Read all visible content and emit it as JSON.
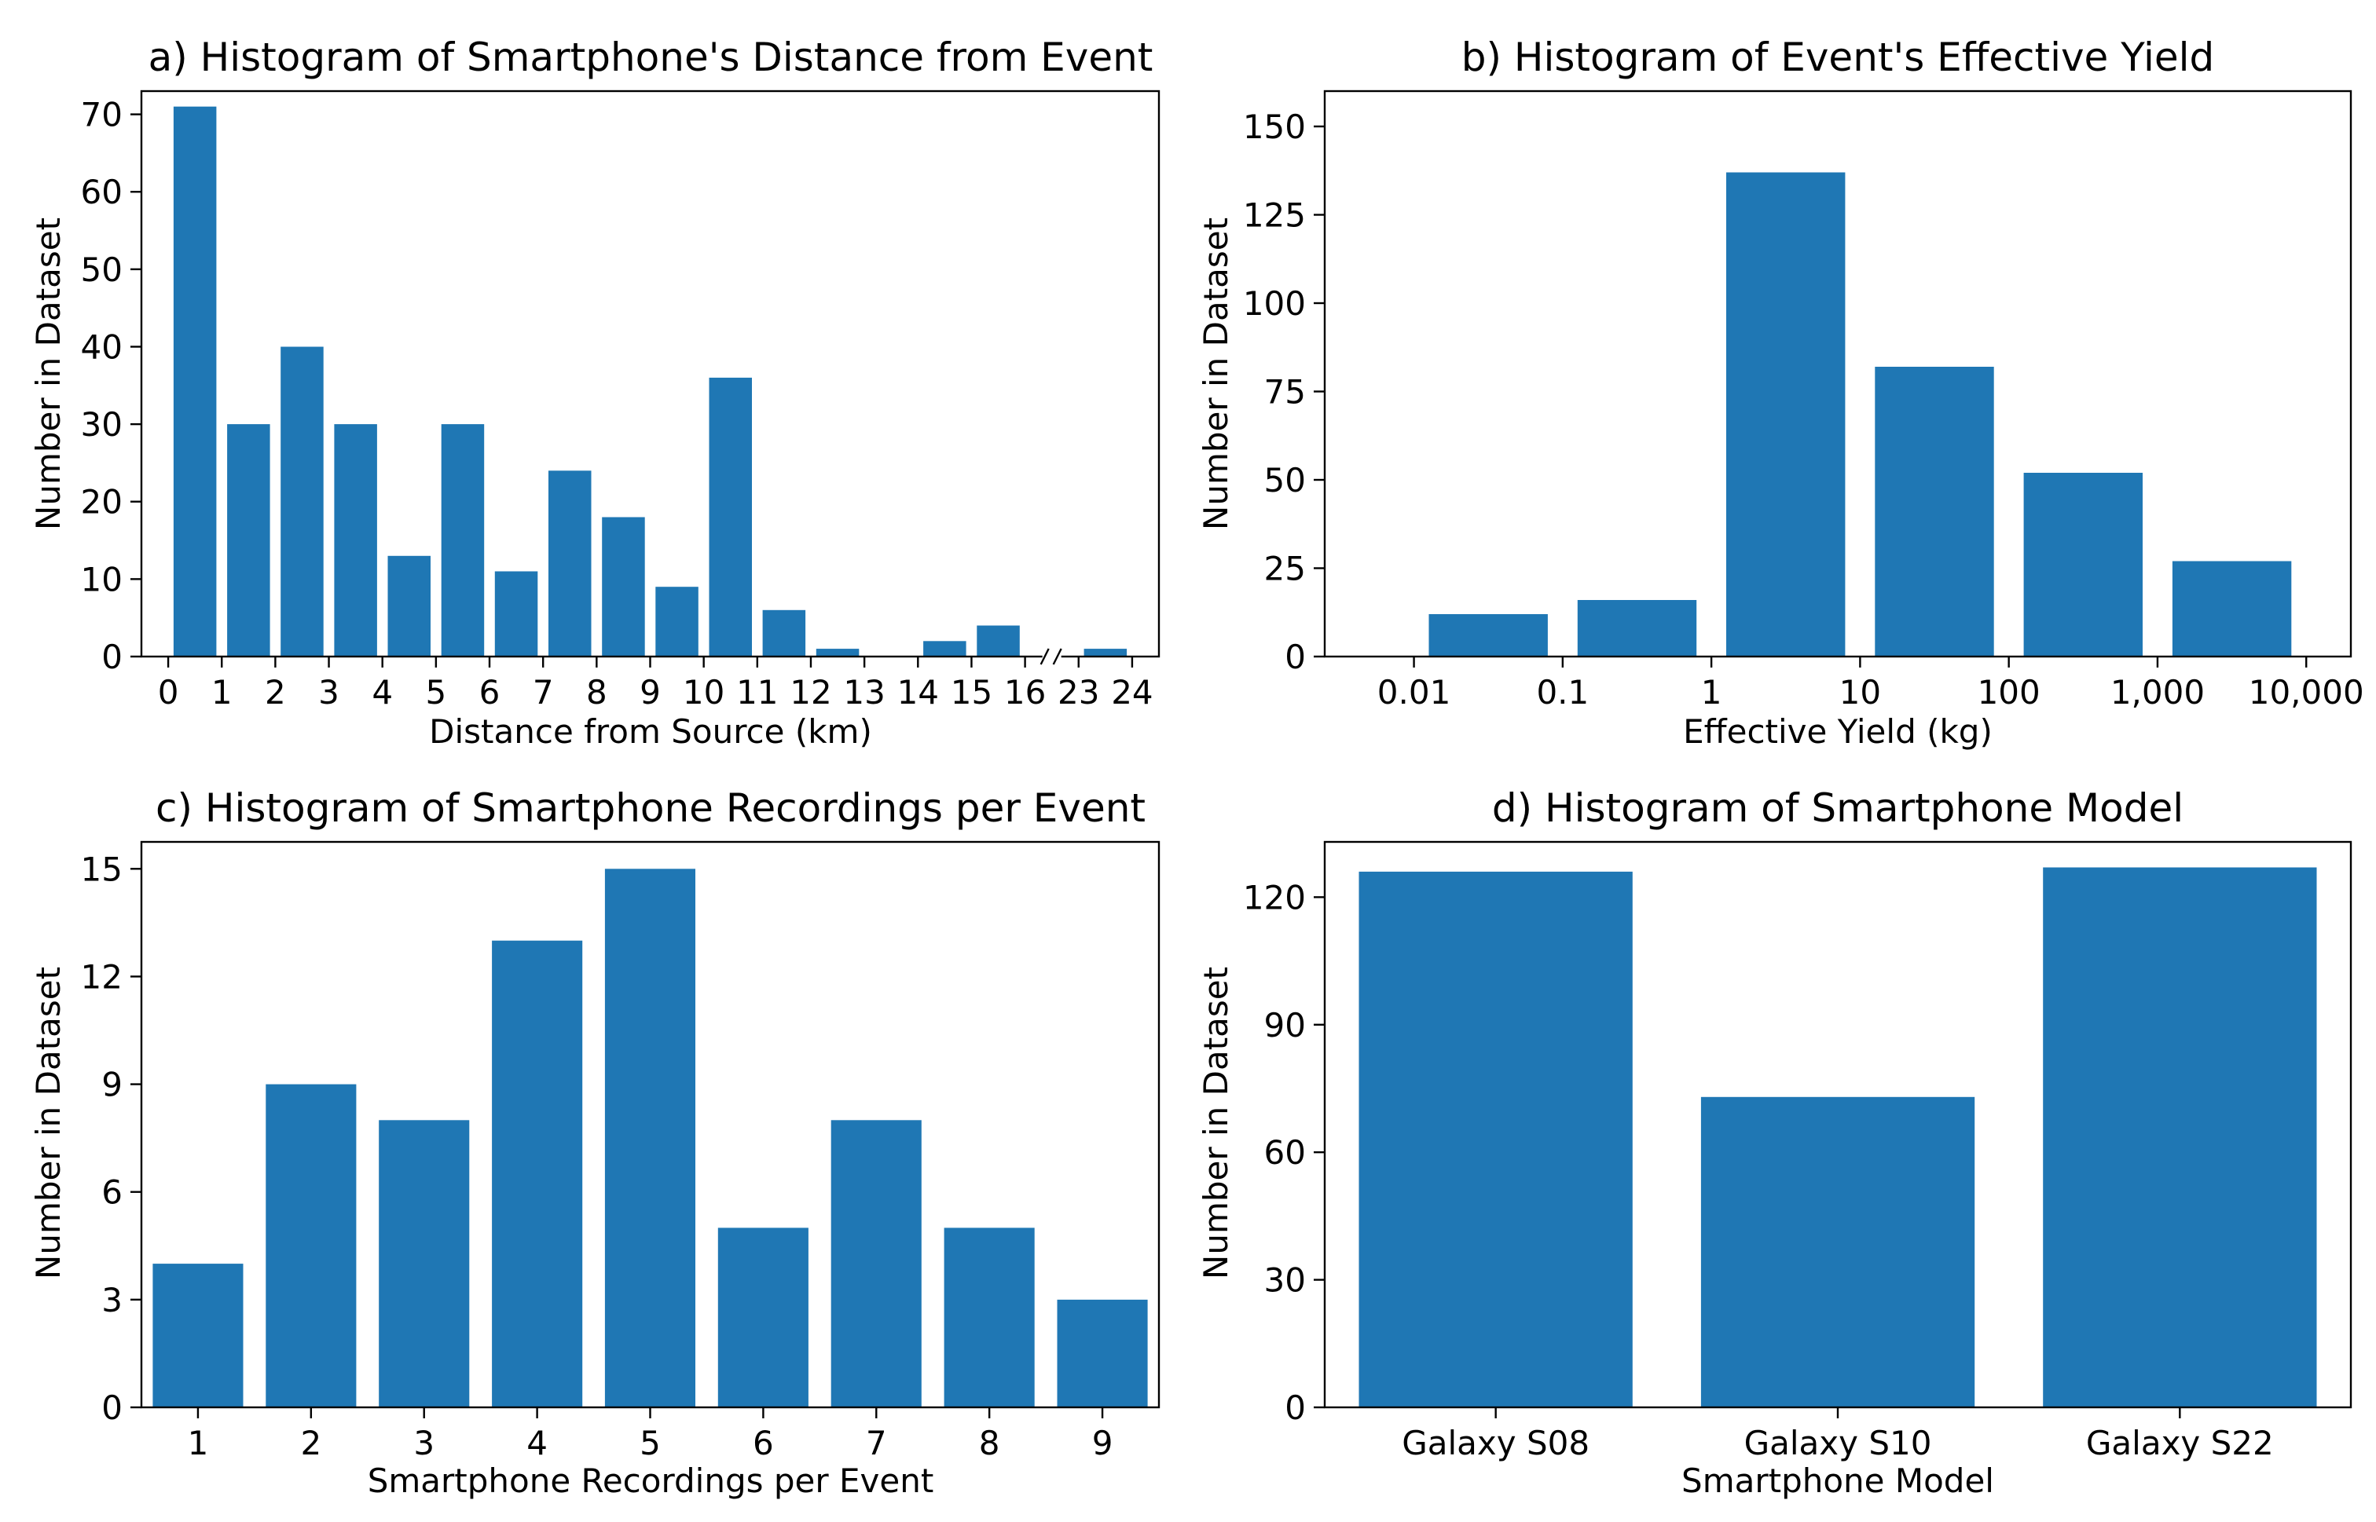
{
  "colors": {
    "bar": "#1f77b4",
    "axis": "#000000",
    "background": "#ffffff"
  },
  "chart_data": [
    {
      "id": "a",
      "type": "bar",
      "title": "a) Histogram of Smartphone's Distance from Event",
      "xlabel": "Distance from Source (km)",
      "ylabel": "Number in Dataset",
      "xlim": [
        -0.5,
        18.5
      ],
      "ylim": [
        0,
        73
      ],
      "yticks": [
        0,
        10,
        20,
        30,
        40,
        50,
        60,
        70
      ],
      "xticks": [
        {
          "value": 0,
          "label": "0"
        },
        {
          "value": 1,
          "label": "1"
        },
        {
          "value": 2,
          "label": "2"
        },
        {
          "value": 3,
          "label": "3"
        },
        {
          "value": 4,
          "label": "4"
        },
        {
          "value": 5,
          "label": "5"
        },
        {
          "value": 6,
          "label": "6"
        },
        {
          "value": 7,
          "label": "7"
        },
        {
          "value": 8,
          "label": "8"
        },
        {
          "value": 9,
          "label": "9"
        },
        {
          "value": 10,
          "label": "10"
        },
        {
          "value": 11,
          "label": "11"
        },
        {
          "value": 12,
          "label": "12"
        },
        {
          "value": 13,
          "label": "13"
        },
        {
          "value": 14,
          "label": "14"
        },
        {
          "value": 15,
          "label": "15"
        },
        {
          "value": 16,
          "label": "16"
        },
        {
          "value": 17,
          "label": "23"
        },
        {
          "value": 18,
          "label": "24"
        }
      ],
      "axis_break_at": 16.5,
      "bar_width": 0.8,
      "bars": [
        {
          "x": 0.5,
          "value": 71
        },
        {
          "x": 1.5,
          "value": 30
        },
        {
          "x": 2.5,
          "value": 40
        },
        {
          "x": 3.5,
          "value": 30
        },
        {
          "x": 4.5,
          "value": 13
        },
        {
          "x": 5.5,
          "value": 30
        },
        {
          "x": 6.5,
          "value": 11
        },
        {
          "x": 7.5,
          "value": 24
        },
        {
          "x": 8.5,
          "value": 18
        },
        {
          "x": 9.5,
          "value": 9
        },
        {
          "x": 10.5,
          "value": 36
        },
        {
          "x": 11.5,
          "value": 6
        },
        {
          "x": 12.5,
          "value": 1
        },
        {
          "x": 13.5,
          "value": 0
        },
        {
          "x": 14.5,
          "value": 2
        },
        {
          "x": 15.5,
          "value": 4
        },
        {
          "x": 17.5,
          "value": 1
        }
      ]
    },
    {
      "id": "b",
      "type": "bar",
      "title": "b) Histogram of Event's Effective Yield",
      "xlabel": "Effective Yield (kg)",
      "ylabel": "Number in Dataset",
      "xlim": [
        -0.6,
        6.3
      ],
      "ylim": [
        0,
        160
      ],
      "yticks": [
        0,
        25,
        50,
        75,
        100,
        125,
        150
      ],
      "xticks": [
        {
          "value": 0,
          "label": "0.01"
        },
        {
          "value": 1,
          "label": "0.1"
        },
        {
          "value": 2,
          "label": "1"
        },
        {
          "value": 3,
          "label": "10"
        },
        {
          "value": 4,
          "label": "100"
        },
        {
          "value": 5,
          "label": "1,000"
        },
        {
          "value": 6,
          "label": "10,000"
        }
      ],
      "bar_width": 0.8,
      "bars": [
        {
          "x": 0.5,
          "value": 12
        },
        {
          "x": 1.5,
          "value": 16
        },
        {
          "x": 2.5,
          "value": 137
        },
        {
          "x": 3.5,
          "value": 82
        },
        {
          "x": 4.5,
          "value": 52
        },
        {
          "x": 5.5,
          "value": 27
        }
      ]
    },
    {
      "id": "c",
      "type": "bar",
      "title": "c) Histogram of Smartphone Recordings per Event",
      "xlabel": "Smartphone Recordings per Event",
      "ylabel": "Number in Dataset",
      "xlim": [
        0.5,
        9.5
      ],
      "ylim": [
        0,
        15.75
      ],
      "yticks": [
        0,
        3,
        6,
        9,
        12,
        15
      ],
      "xticks": [
        {
          "value": 1,
          "label": "1"
        },
        {
          "value": 2,
          "label": "2"
        },
        {
          "value": 3,
          "label": "3"
        },
        {
          "value": 4,
          "label": "4"
        },
        {
          "value": 5,
          "label": "5"
        },
        {
          "value": 6,
          "label": "6"
        },
        {
          "value": 7,
          "label": "7"
        },
        {
          "value": 8,
          "label": "8"
        },
        {
          "value": 9,
          "label": "9"
        }
      ],
      "bar_width": 0.8,
      "bars": [
        {
          "x": 1,
          "value": 4
        },
        {
          "x": 2,
          "value": 9
        },
        {
          "x": 3,
          "value": 8
        },
        {
          "x": 4,
          "value": 13
        },
        {
          "x": 5,
          "value": 15
        },
        {
          "x": 6,
          "value": 5
        },
        {
          "x": 7,
          "value": 8
        },
        {
          "x": 8,
          "value": 5
        },
        {
          "x": 9,
          "value": 3
        }
      ]
    },
    {
      "id": "d",
      "type": "bar",
      "title": "d) Histogram of Smartphone Model",
      "xlabel": "Smartphone Model",
      "ylabel": "Number in Dataset",
      "xlim": [
        -0.5,
        2.5
      ],
      "ylim": [
        0,
        133
      ],
      "yticks": [
        0,
        30,
        60,
        90,
        120
      ],
      "xticks": [
        {
          "value": 0,
          "label": "Galaxy S08"
        },
        {
          "value": 1,
          "label": "Galaxy S10"
        },
        {
          "value": 2,
          "label": "Galaxy S22"
        }
      ],
      "bar_width": 0.8,
      "bars": [
        {
          "x": 0,
          "value": 126
        },
        {
          "x": 1,
          "value": 73
        },
        {
          "x": 2,
          "value": 127
        }
      ]
    }
  ]
}
